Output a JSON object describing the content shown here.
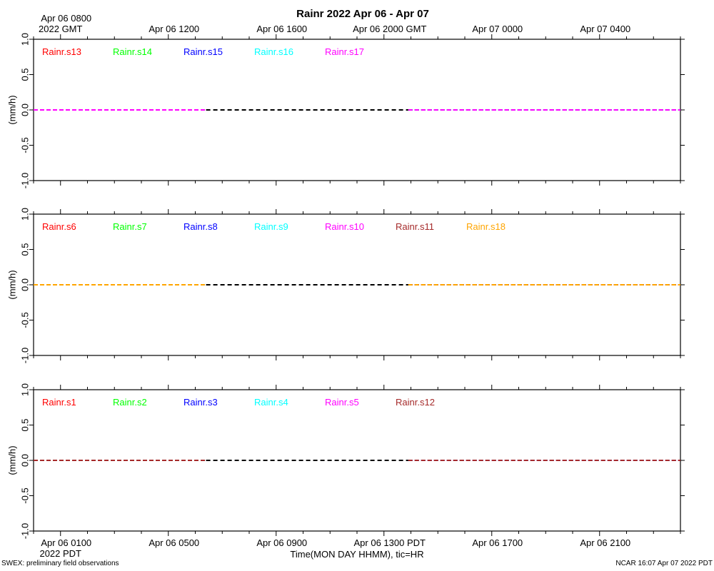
{
  "title": "Rainr 2022 Apr 06 - Apr 07",
  "top_axis": {
    "ticks": [
      {
        "h": 0,
        "lines": [
          "Apr 06 0800",
          "2022 GMT"
        ]
      },
      {
        "h": 4,
        "lines": [
          "Apr 06 1200"
        ]
      },
      {
        "h": 8,
        "lines": [
          "Apr 06 1600"
        ]
      },
      {
        "h": 12,
        "lines": [
          "Apr 06 2000 GMT"
        ]
      },
      {
        "h": 16,
        "lines": [
          "Apr 07 0000"
        ]
      },
      {
        "h": 20,
        "lines": [
          "Apr 07 0400"
        ]
      }
    ]
  },
  "bottom_axis": {
    "ticks": [
      {
        "h": 0,
        "lines": [
          "Apr 06 0100",
          "2022 PDT"
        ]
      },
      {
        "h": 4,
        "lines": [
          "Apr 06 0500"
        ]
      },
      {
        "h": 8,
        "lines": [
          "Apr 06 0900"
        ]
      },
      {
        "h": 12,
        "lines": [
          "Apr 06 1300 PDT"
        ]
      },
      {
        "h": 16,
        "lines": [
          "Apr 06 1700"
        ]
      },
      {
        "h": 20,
        "lines": [
          "Apr 06 2100"
        ]
      }
    ],
    "label": "Time(MON DAY HHMM), tic=HR"
  },
  "footer_left": "SWEX: preliminary field observations",
  "footer_right": "NCAR 16:07 Apr 07 2022 PDT",
  "chart_data": [
    {
      "type": "line",
      "ylabel": "(mm/h)",
      "ylim": [
        -1.0,
        1.0
      ],
      "yticks": [
        "1.0",
        "0.5",
        "0.0",
        "-0.5",
        "-1.0"
      ],
      "ytick_values": [
        1.0,
        0.5,
        0.0,
        -0.5,
        -1.0
      ],
      "x_unit": "hours since Apr 06 0800 GMT",
      "xlim": [
        -1,
        23
      ],
      "series": [
        {
          "name": "Rainr.s13",
          "color": "#ff0000",
          "x": [
            -1,
            5.4,
            12.9,
            23
          ],
          "y": [
            0,
            0,
            0,
            0
          ]
        },
        {
          "name": "Rainr.s14",
          "color": "#00ff00",
          "x": [
            -1,
            5.4,
            12.9,
            23
          ],
          "y": [
            0,
            0,
            0,
            0
          ]
        },
        {
          "name": "Rainr.s15",
          "color": "#0000ff",
          "x": [
            -1,
            5.4,
            12.9,
            23
          ],
          "y": [
            0,
            0,
            0,
            0
          ]
        },
        {
          "name": "Rainr.s16",
          "color": "#00ffff",
          "x": [
            -1,
            5.4,
            12.9,
            23
          ],
          "y": [
            0,
            0,
            0,
            0
          ]
        },
        {
          "name": "Rainr.s17",
          "color": "#ff00ff",
          "x": [
            -1,
            5.4,
            12.9,
            23
          ],
          "y": [
            0,
            0,
            0,
            0
          ]
        }
      ],
      "gap": {
        "from": 5.4,
        "to": 12.9,
        "style": "dashed",
        "color": "#000000"
      }
    },
    {
      "type": "line",
      "ylabel": "(mm/h)",
      "ylim": [
        -1.0,
        1.0
      ],
      "yticks": [
        "1.0",
        "0.5",
        "0.0",
        "-0.5",
        "-1.0"
      ],
      "ytick_values": [
        1.0,
        0.5,
        0.0,
        -0.5,
        -1.0
      ],
      "x_unit": "hours since Apr 06 0800 GMT",
      "xlim": [
        -1,
        23
      ],
      "series": [
        {
          "name": "Rainr.s6",
          "color": "#ff0000",
          "x": [
            -1,
            5.4,
            12.9,
            23
          ],
          "y": [
            0,
            0,
            0,
            0
          ]
        },
        {
          "name": "Rainr.s7",
          "color": "#00ff00",
          "x": [
            -1,
            5.4,
            12.9,
            23
          ],
          "y": [
            0,
            0,
            0,
            0
          ]
        },
        {
          "name": "Rainr.s8",
          "color": "#0000ff",
          "x": [
            -1,
            5.4,
            12.9,
            23
          ],
          "y": [
            0,
            0,
            0,
            0
          ]
        },
        {
          "name": "Rainr.s9",
          "color": "#00ffff",
          "x": [
            -1,
            5.4,
            12.9,
            23
          ],
          "y": [
            0,
            0,
            0,
            0
          ]
        },
        {
          "name": "Rainr.s10",
          "color": "#ff00ff",
          "x": [
            -1,
            5.4,
            12.9,
            23
          ],
          "y": [
            0,
            0,
            0,
            0
          ]
        },
        {
          "name": "Rainr.s11",
          "color": "#a52a2a",
          "x": [
            -1,
            5.4,
            12.9,
            23
          ],
          "y": [
            0,
            0,
            0,
            0
          ]
        },
        {
          "name": "Rainr.s18",
          "color": "#ffa500",
          "x": [
            -1,
            5.4,
            12.9,
            23
          ],
          "y": [
            0,
            0,
            0,
            0
          ]
        }
      ],
      "gap": {
        "from": 5.4,
        "to": 12.9,
        "style": "dashed",
        "color": "#000000"
      }
    },
    {
      "type": "line",
      "ylabel": "(mm/h)",
      "ylim": [
        -1.0,
        1.0
      ],
      "yticks": [
        "1.0",
        "0.5",
        "0.0",
        "-0.5",
        "-1.0"
      ],
      "ytick_values": [
        1.0,
        0.5,
        0.0,
        -0.5,
        -1.0
      ],
      "x_unit": "hours since Apr 06 0800 GMT",
      "xlim": [
        -1,
        23
      ],
      "series": [
        {
          "name": "Rainr.s1",
          "color": "#ff0000",
          "x": [
            -1,
            5.4,
            12.9,
            23
          ],
          "y": [
            0,
            0,
            0,
            0
          ]
        },
        {
          "name": "Rainr.s2",
          "color": "#00ff00",
          "x": [
            -1,
            5.4,
            12.9,
            23
          ],
          "y": [
            0,
            0,
            0,
            0
          ]
        },
        {
          "name": "Rainr.s3",
          "color": "#0000ff",
          "x": [
            -1,
            5.4,
            12.9,
            23
          ],
          "y": [
            0,
            0,
            0,
            0
          ]
        },
        {
          "name": "Rainr.s4",
          "color": "#00ffff",
          "x": [
            -1,
            5.4,
            12.9,
            23
          ],
          "y": [
            0,
            0,
            0,
            0
          ]
        },
        {
          "name": "Rainr.s5",
          "color": "#ff00ff",
          "x": [
            -1,
            5.4,
            12.9,
            23
          ],
          "y": [
            0,
            0,
            0,
            0
          ]
        },
        {
          "name": "Rainr.s12",
          "color": "#a52a2a",
          "x": [
            -1,
            5.4,
            12.9,
            23
          ],
          "y": [
            0,
            0,
            0,
            0
          ]
        }
      ],
      "gap": {
        "from": 5.4,
        "to": 12.9,
        "style": "dashed",
        "color": "#000000"
      }
    }
  ]
}
